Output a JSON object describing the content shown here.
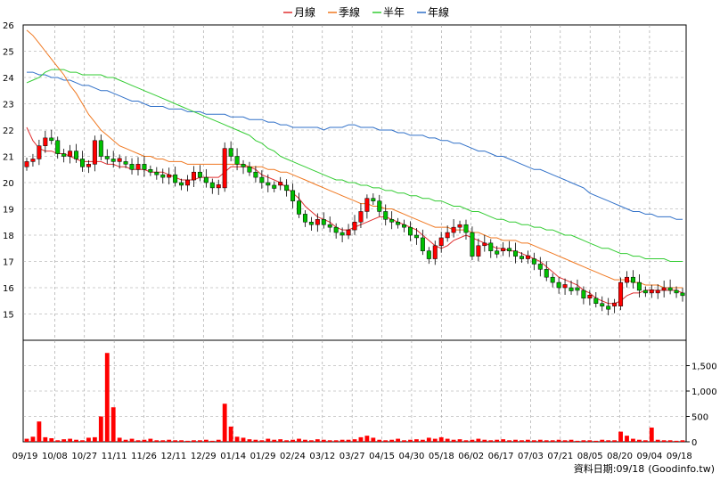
{
  "chart_data": {
    "type": "candlestick",
    "legend": [
      {
        "name": "月線",
        "color": "#e03030"
      },
      {
        "name": "季線",
        "color": "#f07820"
      },
      {
        "name": "半年",
        "color": "#33cc33"
      },
      {
        "name": "年線",
        "color": "#3070c8"
      }
    ],
    "price_axis": {
      "min": 14,
      "max": 26,
      "ticks": [
        15,
        16,
        17,
        18,
        19,
        20,
        21,
        22,
        23,
        24,
        25,
        26
      ]
    },
    "volume_axis": {
      "min": 0,
      "max": 2000,
      "ticks": [
        0,
        500,
        1000,
        1500
      ],
      "tick_labels": [
        "0",
        "500",
        "1,000",
        "1,500"
      ]
    },
    "date_labels": [
      "09/19",
      "10/08",
      "10/27",
      "11/11",
      "11/26",
      "12/11",
      "12/29",
      "01/14",
      "01/29",
      "02/24",
      "03/12",
      "03/27",
      "04/15",
      "04/30",
      "05/18",
      "06/02",
      "06/17",
      "07/03",
      "07/21",
      "08/05",
      "08/20",
      "09/04",
      "09/18"
    ],
    "grid": true,
    "legend_position": "top-center",
    "colors": {
      "up": "#ff0000",
      "down": "#00c000",
      "volume": "#ff0000",
      "grid": "#999999"
    },
    "series_sampled": {
      "close": [
        20.8,
        20.9,
        21.4,
        21.7,
        21.6,
        21.1,
        21.0,
        21.2,
        20.9,
        20.6,
        20.7,
        21.6,
        21.0,
        20.9,
        20.8,
        20.8,
        20.7,
        20.5,
        20.7,
        20.5,
        20.4,
        20.3,
        20.2,
        20.3,
        20.0,
        19.9,
        20.1,
        20.4,
        20.2,
        20.0,
        19.8,
        19.8,
        21.3,
        21.0,
        20.7,
        20.6,
        20.4,
        20.2,
        20.0,
        19.9,
        19.9,
        19.9,
        19.7,
        19.3,
        18.8,
        18.5,
        18.4,
        18.6,
        18.4,
        18.3,
        18.1,
        18.0,
        18.2,
        18.5,
        18.9,
        19.4,
        19.3,
        18.9,
        18.6,
        18.5,
        18.4,
        18.3,
        18.0,
        17.9,
        17.4,
        17.1,
        17.6,
        17.9,
        18.1,
        18.3,
        18.4,
        18.1,
        17.2,
        17.6,
        17.7,
        17.4,
        17.4,
        17.5,
        17.4,
        17.2,
        17.1,
        17.1,
        16.9,
        16.7,
        16.4,
        16.2,
        16.0,
        16.0,
        16.0,
        15.9,
        15.6,
        15.6,
        15.4,
        15.3,
        15.3,
        15.3,
        16.2,
        16.4,
        16.2,
        15.9,
        15.8,
        15.8,
        15.9,
        16.0,
        15.9,
        15.8,
        15.7
      ],
      "ma_month": [
        22.1,
        21.6,
        21.3,
        21.2,
        21.2,
        21.1,
        21.1,
        21.0,
        20.9,
        20.8,
        20.8,
        20.8,
        20.8,
        20.7,
        20.7,
        20.6,
        20.6,
        20.5,
        20.5,
        20.5,
        20.4,
        20.4,
        20.4,
        20.3,
        20.2,
        20.1,
        20.1,
        20.1,
        20.2,
        20.2,
        20.2,
        20.2,
        20.4,
        20.6,
        20.6,
        20.6,
        20.6,
        20.5,
        20.3,
        20.2,
        20.1,
        20.0,
        19.8,
        19.6,
        19.4,
        19.1,
        18.9,
        18.7,
        18.6,
        18.5,
        18.3,
        18.2,
        18.2,
        18.3,
        18.4,
        18.5,
        18.6,
        18.7,
        18.7,
        18.6,
        18.5,
        18.4,
        18.3,
        18.2,
        18.0,
        17.8,
        17.6,
        17.5,
        17.6,
        17.8,
        17.9,
        18.0,
        17.9,
        17.8,
        17.7,
        17.6,
        17.5,
        17.5,
        17.4,
        17.4,
        17.3,
        17.2,
        17.1,
        17.0,
        16.8,
        16.6,
        16.4,
        16.3,
        16.2,
        16.1,
        15.9,
        15.8,
        15.6,
        15.5,
        15.4,
        15.4,
        15.5,
        15.7,
        15.8,
        15.8,
        15.9,
        15.9,
        15.9,
        15.9,
        15.9,
        15.9,
        15.8
      ],
      "ma_quarter": [
        25.8,
        25.6,
        25.3,
        25.0,
        24.7,
        24.4,
        24.1,
        23.7,
        23.4,
        23.0,
        22.6,
        22.3,
        22.0,
        21.8,
        21.6,
        21.4,
        21.3,
        21.2,
        21.1,
        21.0,
        21.0,
        20.9,
        20.9,
        20.8,
        20.8,
        20.8,
        20.7,
        20.7,
        20.7,
        20.7,
        20.7,
        20.7,
        20.7,
        20.7,
        20.7,
        20.7,
        20.6,
        20.6,
        20.6,
        20.5,
        20.5,
        20.4,
        20.4,
        20.3,
        20.2,
        20.1,
        20.0,
        19.9,
        19.8,
        19.7,
        19.6,
        19.5,
        19.4,
        19.3,
        19.2,
        19.2,
        19.1,
        19.1,
        19.0,
        19.0,
        18.9,
        18.8,
        18.7,
        18.6,
        18.5,
        18.4,
        18.3,
        18.3,
        18.3,
        18.2,
        18.2,
        18.2,
        18.1,
        18.1,
        18.0,
        17.9,
        17.9,
        17.8,
        17.8,
        17.8,
        17.7,
        17.7,
        17.6,
        17.5,
        17.4,
        17.3,
        17.2,
        17.1,
        17.0,
        16.9,
        16.8,
        16.7,
        16.6,
        16.5,
        16.4,
        16.3,
        16.3,
        16.3,
        16.2,
        16.2,
        16.1,
        16.1,
        16.1,
        16.0,
        16.0,
        16.0,
        16.0
      ],
      "ma_half": [
        23.8,
        23.9,
        24.0,
        24.2,
        24.3,
        24.3,
        24.3,
        24.2,
        24.2,
        24.1,
        24.1,
        24.1,
        24.1,
        24.0,
        24.0,
        23.9,
        23.8,
        23.7,
        23.6,
        23.5,
        23.4,
        23.3,
        23.2,
        23.1,
        23.0,
        22.9,
        22.8,
        22.7,
        22.6,
        22.5,
        22.4,
        22.3,
        22.2,
        22.1,
        22.0,
        21.9,
        21.8,
        21.6,
        21.5,
        21.3,
        21.2,
        21.0,
        20.9,
        20.8,
        20.7,
        20.6,
        20.5,
        20.4,
        20.3,
        20.2,
        20.1,
        20.1,
        20.0,
        20.0,
        19.9,
        19.9,
        19.8,
        19.8,
        19.7,
        19.7,
        19.6,
        19.6,
        19.5,
        19.5,
        19.4,
        19.4,
        19.3,
        19.3,
        19.2,
        19.1,
        19.1,
        19.0,
        18.9,
        18.9,
        18.8,
        18.7,
        18.6,
        18.6,
        18.5,
        18.5,
        18.4,
        18.4,
        18.3,
        18.3,
        18.2,
        18.2,
        18.1,
        18.0,
        18.0,
        17.9,
        17.8,
        17.7,
        17.6,
        17.5,
        17.5,
        17.4,
        17.3,
        17.3,
        17.2,
        17.2,
        17.1,
        17.1,
        17.1,
        17.1,
        17.0,
        17.0,
        17.0
      ],
      "ma_year": [
        24.2,
        24.2,
        24.1,
        24.1,
        24.0,
        24.0,
        23.9,
        23.9,
        23.8,
        23.7,
        23.7,
        23.6,
        23.5,
        23.5,
        23.4,
        23.3,
        23.2,
        23.1,
        23.1,
        23.0,
        22.9,
        22.9,
        22.9,
        22.8,
        22.8,
        22.8,
        22.7,
        22.7,
        22.7,
        22.6,
        22.6,
        22.6,
        22.6,
        22.5,
        22.5,
        22.5,
        22.4,
        22.4,
        22.4,
        22.3,
        22.3,
        22.2,
        22.2,
        22.1,
        22.1,
        22.1,
        22.1,
        22.1,
        22.0,
        22.1,
        22.1,
        22.1,
        22.2,
        22.2,
        22.1,
        22.1,
        22.1,
        22.0,
        22.0,
        22.0,
        21.9,
        21.9,
        21.8,
        21.8,
        21.8,
        21.7,
        21.7,
        21.6,
        21.6,
        21.5,
        21.5,
        21.4,
        21.3,
        21.2,
        21.2,
        21.1,
        21.0,
        21.0,
        20.9,
        20.8,
        20.7,
        20.6,
        20.5,
        20.5,
        20.4,
        20.3,
        20.2,
        20.1,
        20.0,
        19.9,
        19.8,
        19.6,
        19.5,
        19.4,
        19.3,
        19.2,
        19.1,
        19.0,
        18.9,
        18.9,
        18.8,
        18.8,
        18.7,
        18.7,
        18.7,
        18.6,
        18.6
      ],
      "volume": [
        60,
        100,
        400,
        90,
        70,
        30,
        50,
        60,
        40,
        30,
        80,
        90,
        500,
        1750,
        680,
        80,
        40,
        60,
        30,
        40,
        60,
        30,
        30,
        40,
        30,
        30,
        20,
        30,
        30,
        40,
        20,
        40,
        750,
        300,
        100,
        80,
        50,
        40,
        30,
        60,
        40,
        50,
        30,
        40,
        60,
        40,
        30,
        50,
        40,
        30,
        30,
        40,
        40,
        50,
        90,
        120,
        80,
        40,
        30,
        40,
        60,
        30,
        40,
        50,
        40,
        80,
        60,
        90,
        60,
        40,
        50,
        30,
        40,
        60,
        40,
        30,
        40,
        50,
        30,
        40,
        30,
        40,
        30,
        40,
        30,
        30,
        40,
        30,
        40,
        20,
        30,
        30,
        20,
        40,
        30,
        30,
        200,
        120,
        60,
        40,
        30,
        280,
        40,
        30,
        30,
        20,
        30
      ]
    }
  },
  "footer": {
    "label": "資料日期:",
    "date": "09/18",
    "source": "(Goodinfo.tw)"
  }
}
